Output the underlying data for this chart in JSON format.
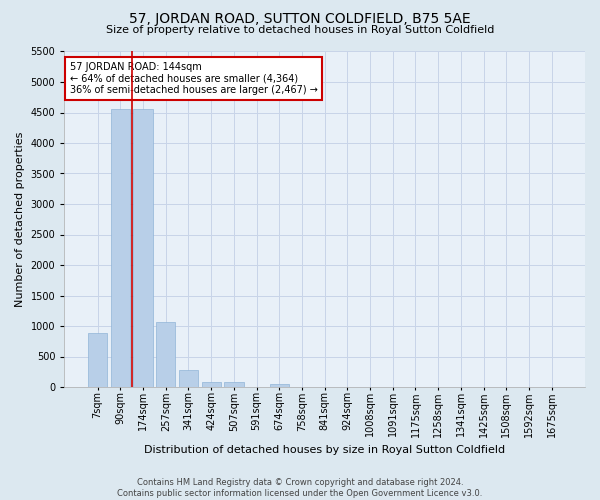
{
  "title": "57, JORDAN ROAD, SUTTON COLDFIELD, B75 5AE",
  "subtitle": "Size of property relative to detached houses in Royal Sutton Coldfield",
  "xlabel": "Distribution of detached houses by size in Royal Sutton Coldfield",
  "ylabel": "Number of detached properties",
  "footer_line1": "Contains HM Land Registry data © Crown copyright and database right 2024.",
  "footer_line2": "Contains public sector information licensed under the Open Government Licence v3.0.",
  "categories": [
    "7sqm",
    "90sqm",
    "174sqm",
    "257sqm",
    "341sqm",
    "424sqm",
    "507sqm",
    "591sqm",
    "674sqm",
    "758sqm",
    "841sqm",
    "924sqm",
    "1008sqm",
    "1091sqm",
    "1175sqm",
    "1258sqm",
    "1341sqm",
    "1425sqm",
    "1508sqm",
    "1592sqm",
    "1675sqm"
  ],
  "values": [
    880,
    4550,
    4550,
    1060,
    275,
    90,
    85,
    0,
    55,
    0,
    0,
    0,
    0,
    0,
    0,
    0,
    0,
    0,
    0,
    0,
    0
  ],
  "bar_color": "#b8cfe8",
  "bar_edge_color": "#90b4d8",
  "vline_color": "#cc0000",
  "annotation_text": "57 JORDAN ROAD: 144sqm\n← 64% of detached houses are smaller (4,364)\n36% of semi-detached houses are larger (2,467) →",
  "annotation_box_color": "#cc0000",
  "annotation_text_color": "black",
  "annotation_bg_color": "white",
  "ylim": [
    0,
    5500
  ],
  "yticks": [
    0,
    500,
    1000,
    1500,
    2000,
    2500,
    3000,
    3500,
    4000,
    4500,
    5000,
    5500
  ],
  "grid_color": "#c8d4e8",
  "bg_color": "#dce8f0",
  "plot_bg_color": "#e8f0f8",
  "title_fontsize": 10,
  "subtitle_fontsize": 8,
  "ylabel_fontsize": 8,
  "xlabel_fontsize": 8,
  "tick_fontsize": 7,
  "footer_fontsize": 6
}
